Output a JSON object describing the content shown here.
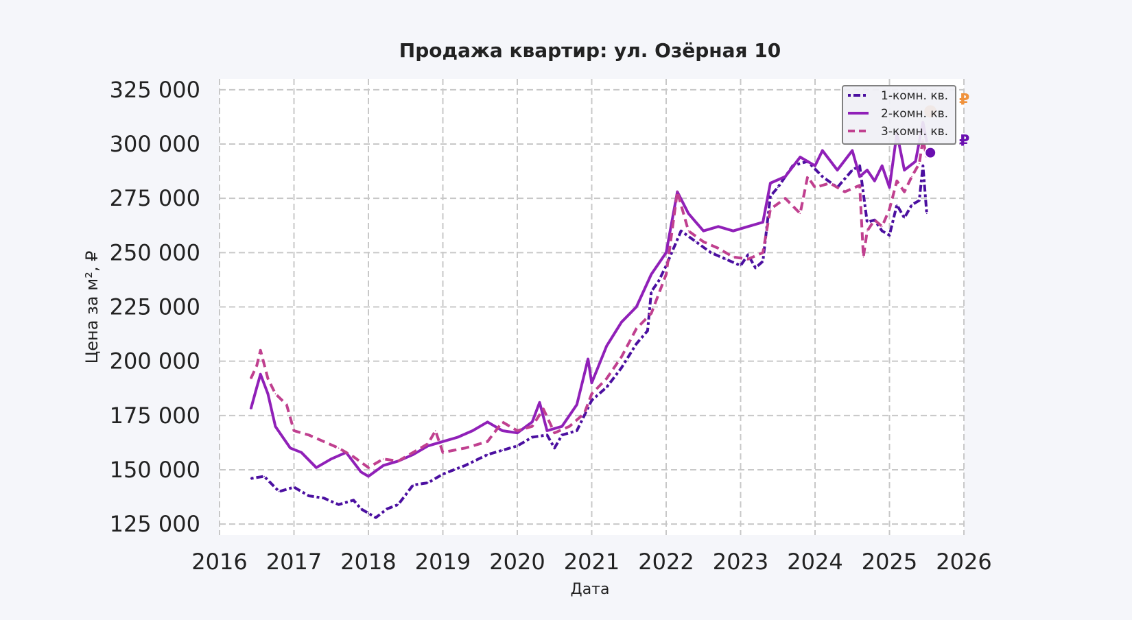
{
  "chart_data": {
    "type": "line",
    "title": "Продажа квартир: ул. Озёрная 10",
    "xlabel": "Дата",
    "ylabel": "Цена за м², ₽",
    "xlim": [
      2016.0,
      2026.0
    ],
    "ylim": [
      120000,
      330000
    ],
    "x_ticks": [
      2016,
      2017,
      2018,
      2019,
      2020,
      2021,
      2022,
      2023,
      2024,
      2025,
      2026
    ],
    "y_ticks": [
      125000,
      150000,
      175000,
      200000,
      225000,
      250000,
      275000,
      300000,
      325000
    ],
    "y_tick_labels": [
      "125 000",
      "150 000",
      "175 000",
      "200 000",
      "225 000",
      "250 000",
      "275 000",
      "300 000",
      "325 000"
    ],
    "grid": true,
    "legend_position": "top-right",
    "series": [
      {
        "name": "1-комн. кв.",
        "style": "dash-dot",
        "color": "#4b0fa0",
        "x": [
          2016.42,
          2016.6,
          2016.8,
          2017.0,
          2017.2,
          2017.4,
          2017.6,
          2017.8,
          2017.9,
          2018.0,
          2018.1,
          2018.25,
          2018.4,
          2018.6,
          2018.8,
          2019.0,
          2019.3,
          2019.6,
          2019.8,
          2020.0,
          2020.2,
          2020.4,
          2020.5,
          2020.6,
          2020.8,
          2021.0,
          2021.2,
          2021.4,
          2021.6,
          2021.75,
          2021.8,
          2021.9,
          2022.0,
          2022.2,
          2022.4,
          2022.6,
          2022.8,
          2023.0,
          2023.1,
          2023.2,
          2023.3,
          2023.4,
          2023.5,
          2023.7,
          2023.9,
          2024.1,
          2024.3,
          2024.5,
          2024.6,
          2024.7,
          2024.8,
          2024.9,
          2025.0,
          2025.1,
          2025.2,
          2025.3,
          2025.4,
          2025.45,
          2025.5
        ],
        "y": [
          146000,
          147000,
          140000,
          142000,
          138000,
          137000,
          134000,
          136000,
          132000,
          130000,
          128000,
          132000,
          134000,
          143000,
          144000,
          148000,
          152000,
          157000,
          159000,
          161000,
          165000,
          166000,
          160000,
          166000,
          168000,
          182000,
          188000,
          197000,
          208000,
          214000,
          232000,
          237000,
          244000,
          260000,
          255000,
          250000,
          247000,
          244000,
          249000,
          243000,
          246000,
          276000,
          280000,
          290000,
          292000,
          285000,
          280000,
          288000,
          290000,
          264000,
          265000,
          260000,
          258000,
          272000,
          266000,
          272000,
          274000,
          290000,
          268000
        ]
      },
      {
        "name": "2-комн. кв.",
        "style": "solid",
        "color": "#9020b8",
        "x": [
          2016.42,
          2016.5,
          2016.55,
          2016.65,
          2016.75,
          2016.85,
          2016.95,
          2017.1,
          2017.3,
          2017.5,
          2017.7,
          2017.9,
          2018.0,
          2018.2,
          2018.4,
          2018.6,
          2018.8,
          2019.0,
          2019.2,
          2019.4,
          2019.6,
          2019.8,
          2020.0,
          2020.2,
          2020.3,
          2020.4,
          2020.6,
          2020.8,
          2020.9,
          2020.95,
          2021.0,
          2021.2,
          2021.4,
          2021.6,
          2021.8,
          2022.0,
          2022.15,
          2022.3,
          2022.5,
          2022.7,
          2022.9,
          2023.1,
          2023.3,
          2023.4,
          2023.6,
          2023.8,
          2024.0,
          2024.1,
          2024.3,
          2024.5,
          2024.6,
          2024.7,
          2024.8,
          2024.9,
          2025.0,
          2025.1,
          2025.2,
          2025.35,
          2025.45,
          2025.5
        ],
        "y": [
          178000,
          188000,
          194000,
          185000,
          170000,
          165000,
          160000,
          158000,
          151000,
          155000,
          158000,
          149000,
          147000,
          152000,
          154000,
          157000,
          161000,
          163000,
          165000,
          168000,
          172000,
          168000,
          167000,
          172000,
          181000,
          168000,
          170000,
          180000,
          194000,
          201000,
          190000,
          207000,
          218000,
          225000,
          240000,
          250000,
          278000,
          268000,
          260000,
          262000,
          260000,
          262000,
          264000,
          282000,
          285000,
          294000,
          290000,
          297000,
          288000,
          297000,
          285000,
          288000,
          283000,
          290000,
          280000,
          305000,
          288000,
          292000,
          310000,
          301000
        ]
      },
      {
        "name": "3-комн. кв.",
        "style": "dashed",
        "color": "#c0408f",
        "x": [
          2016.42,
          2016.5,
          2016.55,
          2016.65,
          2016.75,
          2016.9,
          2017.0,
          2017.2,
          2017.4,
          2017.6,
          2017.8,
          2018.0,
          2018.2,
          2018.4,
          2018.6,
          2018.8,
          2018.9,
          2019.0,
          2019.3,
          2019.6,
          2019.8,
          2020.0,
          2020.2,
          2020.35,
          2020.5,
          2020.7,
          2020.9,
          2021.0,
          2021.2,
          2021.4,
          2021.6,
          2021.8,
          2022.0,
          2022.15,
          2022.3,
          2022.5,
          2022.7,
          2022.9,
          2023.1,
          2023.3,
          2023.4,
          2023.6,
          2023.8,
          2023.9,
          2024.0,
          2024.2,
          2024.4,
          2024.6,
          2024.65,
          2024.7,
          2024.8,
          2024.9,
          2025.0,
          2025.1,
          2025.2,
          2025.3,
          2025.4,
          2025.45,
          2025.5
        ],
        "y": [
          192000,
          198000,
          205000,
          192000,
          185000,
          180000,
          168000,
          166000,
          163000,
          160000,
          156000,
          151000,
          155000,
          154000,
          158000,
          162000,
          168000,
          158000,
          160000,
          163000,
          172000,
          168000,
          170000,
          178000,
          167000,
          170000,
          176000,
          185000,
          192000,
          202000,
          215000,
          222000,
          240000,
          278000,
          260000,
          255000,
          252000,
          248000,
          247000,
          250000,
          270000,
          275000,
          268000,
          285000,
          280000,
          282000,
          278000,
          281000,
          248000,
          260000,
          265000,
          262000,
          270000,
          283000,
          278000,
          285000,
          291000,
          302000,
          294000
        ]
      }
    ],
    "end_markers": [
      {
        "x": 2025.55,
        "y": 315000,
        "color": "#f0923c",
        "label": "₽"
      },
      {
        "x": 2025.55,
        "y": 296000,
        "color": "#6a0fb0",
        "label": "₽"
      }
    ]
  }
}
